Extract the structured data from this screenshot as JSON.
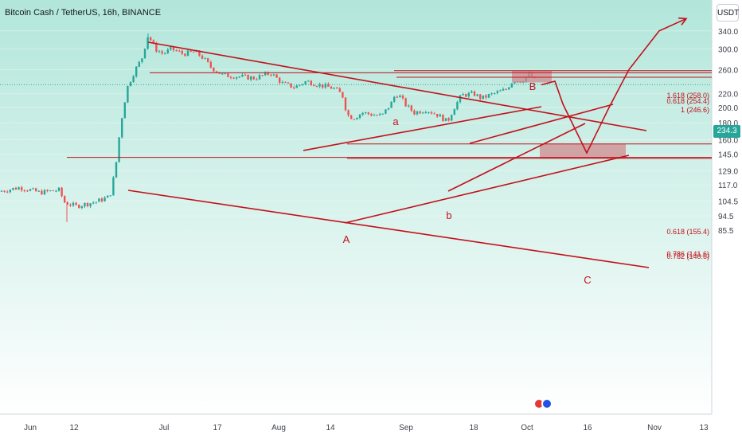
{
  "header": {
    "title": "Bitcoin Cash / TetherUS, 16h, BINANCE",
    "currency": "USDT"
  },
  "current_price": "234.3",
  "colors": {
    "bg_top": "#b2e6da",
    "bg_bottom": "#ffffff",
    "up": "#26a69a",
    "down": "#ef5350",
    "drawing": "#c2111b",
    "zone": "#d08a8f",
    "axis_text": "#3c4049"
  },
  "chart_data": {
    "type": "candlestick",
    "price_scale": "log",
    "y_ticks": [
      "340.0",
      "300.0",
      "260.0",
      "234.3",
      "220.0",
      "200.0",
      "180.0",
      "160.0",
      "145.0",
      "129.0",
      "117.0",
      "104.5",
      "94.5",
      "85.5"
    ],
    "x_ticks": [
      "Jun",
      "12",
      "Jul",
      "17",
      "Aug",
      "14",
      "Sep",
      "18",
      "Oct",
      "16",
      "Nov",
      "13"
    ],
    "wave_labels": [
      "B",
      "a",
      "A",
      "b",
      "C"
    ],
    "fib_levels": [
      {
        "label": "1.618 (258.0)",
        "value": 258.0
      },
      {
        "label": "0.618 (254.4)",
        "value": 254.4
      },
      {
        "label": "1 (246.6)",
        "value": 246.6
      },
      {
        "label": "0.618 (155.4)",
        "value": 155.4
      },
      {
        "label": "0.786 (141.6)",
        "value": 141.6
      },
      {
        "label": "0.782 (140.6)",
        "value": 140.6
      }
    ],
    "price_path": [
      [
        0,
        112
      ],
      [
        25,
        115
      ],
      [
        50,
        111
      ],
      [
        75,
        113
      ],
      [
        80,
        104
      ],
      [
        95,
        101
      ],
      [
        120,
        104
      ],
      [
        138,
        108
      ],
      [
        145,
        130
      ],
      [
        152,
        180
      ],
      [
        160,
        230
      ],
      [
        170,
        260
      ],
      [
        178,
        280
      ],
      [
        186,
        330
      ],
      [
        195,
        300
      ],
      [
        205,
        290
      ],
      [
        215,
        300
      ],
      [
        230,
        290
      ],
      [
        245,
        294
      ],
      [
        255,
        282
      ],
      [
        265,
        264
      ],
      [
        280,
        250
      ],
      [
        300,
        248
      ],
      [
        320,
        245
      ],
      [
        340,
        254
      ],
      [
        355,
        236
      ],
      [
        370,
        230
      ],
      [
        385,
        240
      ],
      [
        400,
        234
      ],
      [
        420,
        228
      ],
      [
        430,
        218
      ],
      [
        436,
        190
      ],
      [
        444,
        186
      ],
      [
        455,
        193
      ],
      [
        470,
        190
      ],
      [
        480,
        189
      ],
      [
        492,
        207
      ],
      [
        497,
        220
      ],
      [
        503,
        215
      ],
      [
        510,
        203
      ],
      [
        520,
        193
      ],
      [
        535,
        197
      ],
      [
        550,
        190
      ],
      [
        562,
        181
      ],
      [
        570,
        199
      ],
      [
        580,
        218
      ],
      [
        595,
        220
      ],
      [
        605,
        213
      ],
      [
        615,
        218
      ],
      [
        625,
        222
      ],
      [
        635,
        226
      ],
      [
        645,
        242
      ],
      [
        655,
        240
      ],
      [
        665,
        252
      ],
      [
        675,
        236
      ]
    ],
    "projection_path": [
      [
        680,
        234
      ],
      [
        697,
        240
      ],
      [
        707,
        205
      ],
      [
        737,
        146
      ],
      [
        765,
        200
      ],
      [
        790,
        260
      ],
      [
        828,
        340
      ],
      [
        862,
        370
      ]
    ]
  }
}
